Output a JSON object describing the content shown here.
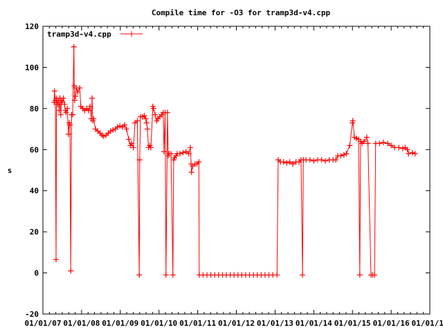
{
  "chart_data": {
    "type": "line",
    "title": "Compile time for -O3 for tramp3d-v4.cpp",
    "xlabel": "",
    "ylabel": "s",
    "xlim": [
      2007.0,
      2017.0
    ],
    "ylim": [
      -20,
      120
    ],
    "yticks": [
      -20,
      0,
      20,
      40,
      60,
      80,
      100,
      120
    ],
    "xtick_labels": [
      "01/01/07",
      "01/01/08",
      "01/01/09",
      "01/01/10",
      "01/01/11",
      "01/01/12",
      "01/01/13",
      "01/01/14",
      "01/01/15",
      "01/01/16",
      "01/01/17"
    ],
    "grid": false,
    "legend_position": "top-left",
    "series": [
      {
        "name": "tramp3d-v4.cpp",
        "color": "#ff0000",
        "marker": "plus",
        "points": [
          [
            2007.29,
            83
          ],
          [
            2007.3,
            88.5
          ],
          [
            2007.32,
            84
          ],
          [
            2007.34,
            6.5
          ],
          [
            2007.35,
            85
          ],
          [
            2007.38,
            82
          ],
          [
            2007.4,
            84
          ],
          [
            2007.42,
            79
          ],
          [
            2007.44,
            85
          ],
          [
            2007.46,
            77
          ],
          [
            2007.48,
            84
          ],
          [
            2007.5,
            83
          ],
          [
            2007.53,
            85
          ],
          [
            2007.56,
            82
          ],
          [
            2007.58,
            79
          ],
          [
            2007.6,
            78
          ],
          [
            2007.63,
            80
          ],
          [
            2007.66,
            67.5
          ],
          [
            2007.68,
            73
          ],
          [
            2007.7,
            72
          ],
          [
            2007.72,
            1
          ],
          [
            2007.74,
            77
          ],
          [
            2007.77,
            77
          ],
          [
            2007.8,
            110
          ],
          [
            2007.81,
            91
          ],
          [
            2007.82,
            84
          ],
          [
            2007.84,
            86
          ],
          [
            2007.86,
            90
          ],
          [
            2007.9,
            88
          ],
          [
            2007.95,
            90
          ],
          [
            2007.98,
            81
          ],
          [
            2008.03,
            80
          ],
          [
            2008.08,
            79
          ],
          [
            2008.13,
            80
          ],
          [
            2008.18,
            79
          ],
          [
            2008.22,
            81
          ],
          [
            2008.25,
            75
          ],
          [
            2008.27,
            85
          ],
          [
            2008.29,
            74
          ],
          [
            2008.31,
            75
          ],
          [
            2008.36,
            70
          ],
          [
            2008.42,
            69
          ],
          [
            2008.48,
            68
          ],
          [
            2008.53,
            67
          ],
          [
            2008.57,
            66.5
          ],
          [
            2008.63,
            67
          ],
          [
            2008.69,
            68
          ],
          [
            2008.75,
            69
          ],
          [
            2008.81,
            69.5
          ],
          [
            2008.87,
            70
          ],
          [
            2008.93,
            71
          ],
          [
            2008.99,
            71.5
          ],
          [
            2009.05,
            71
          ],
          [
            2009.11,
            72
          ],
          [
            2009.16,
            70
          ],
          [
            2009.22,
            65
          ],
          [
            2009.26,
            62
          ],
          [
            2009.29,
            63
          ],
          [
            2009.34,
            61
          ],
          [
            2009.38,
            73
          ],
          [
            2009.44,
            74
          ],
          [
            2009.49,
            -1
          ],
          [
            2009.5,
            55
          ],
          [
            2009.52,
            76
          ],
          [
            2009.57,
            76
          ],
          [
            2009.62,
            76.5
          ],
          [
            2009.66,
            75
          ],
          [
            2009.68,
            73
          ],
          [
            2009.7,
            70
          ],
          [
            2009.73,
            61
          ],
          [
            2009.76,
            62
          ],
          [
            2009.79,
            61
          ],
          [
            2009.84,
            81
          ],
          [
            2009.86,
            80
          ],
          [
            2009.9,
            77
          ],
          [
            2009.94,
            74
          ],
          [
            2009.97,
            75
          ],
          [
            2010.02,
            76
          ],
          [
            2010.07,
            77
          ],
          [
            2010.11,
            78
          ],
          [
            2010.13,
            59
          ],
          [
            2010.16,
            78
          ],
          [
            2010.18,
            -1
          ],
          [
            2010.22,
            78
          ],
          [
            2010.24,
            57
          ],
          [
            2010.26,
            58
          ],
          [
            2010.31,
            58
          ],
          [
            2010.36,
            -1
          ],
          [
            2010.38,
            55
          ],
          [
            2010.4,
            56
          ],
          [
            2010.44,
            57
          ],
          [
            2010.47,
            58
          ],
          [
            2010.54,
            58
          ],
          [
            2010.62,
            58.5
          ],
          [
            2010.7,
            59
          ],
          [
            2010.77,
            58
          ],
          [
            2010.81,
            61
          ],
          [
            2010.83,
            53
          ],
          [
            2010.84,
            49
          ],
          [
            2010.87,
            52
          ],
          [
            2010.93,
            53
          ],
          [
            2010.98,
            53
          ],
          [
            2011.03,
            54
          ],
          [
            2011.04,
            -1
          ],
          [
            2011.14,
            -1
          ],
          [
            2011.24,
            -1
          ],
          [
            2011.34,
            -1
          ],
          [
            2011.44,
            -1
          ],
          [
            2011.54,
            -1
          ],
          [
            2011.64,
            -1
          ],
          [
            2011.74,
            -1
          ],
          [
            2011.84,
            -1
          ],
          [
            2011.94,
            -1
          ],
          [
            2012.04,
            -1
          ],
          [
            2012.14,
            -1
          ],
          [
            2012.24,
            -1
          ],
          [
            2012.34,
            -1
          ],
          [
            2012.44,
            -1
          ],
          [
            2012.54,
            -1
          ],
          [
            2012.64,
            -1
          ],
          [
            2012.74,
            -1
          ],
          [
            2012.84,
            -1
          ],
          [
            2012.94,
            -1
          ],
          [
            2013.05,
            -1
          ],
          [
            2013.08,
            55
          ],
          [
            2013.14,
            54
          ],
          [
            2013.22,
            54
          ],
          [
            2013.3,
            53.5
          ],
          [
            2013.38,
            54
          ],
          [
            2013.46,
            53
          ],
          [
            2013.54,
            54
          ],
          [
            2013.62,
            54
          ],
          [
            2013.67,
            55
          ],
          [
            2013.71,
            -1
          ],
          [
            2013.73,
            55
          ],
          [
            2013.8,
            55
          ],
          [
            2013.9,
            55
          ],
          [
            2014.0,
            54.5
          ],
          [
            2014.1,
            55
          ],
          [
            2014.2,
            55
          ],
          [
            2014.3,
            54.5
          ],
          [
            2014.4,
            55
          ],
          [
            2014.5,
            55
          ],
          [
            2014.57,
            55
          ],
          [
            2014.62,
            57
          ],
          [
            2014.7,
            57
          ],
          [
            2014.78,
            57.5
          ],
          [
            2014.84,
            58
          ],
          [
            2014.93,
            62
          ],
          [
            2015.0,
            73
          ],
          [
            2015.01,
            74
          ],
          [
            2015.05,
            66
          ],
          [
            2015.1,
            65.5
          ],
          [
            2015.16,
            65
          ],
          [
            2015.19,
            -1
          ],
          [
            2015.21,
            64
          ],
          [
            2015.25,
            63
          ],
          [
            2015.3,
            64
          ],
          [
            2015.37,
            66
          ],
          [
            2015.4,
            63
          ],
          [
            2015.48,
            -1
          ],
          [
            2015.52,
            -1
          ],
          [
            2015.57,
            -1
          ],
          [
            2015.6,
            63
          ],
          [
            2015.7,
            63
          ],
          [
            2015.8,
            63.5
          ],
          [
            2015.91,
            63
          ],
          [
            2016.0,
            62
          ],
          [
            2016.09,
            61
          ],
          [
            2016.2,
            61
          ],
          [
            2016.3,
            60.5
          ],
          [
            2016.36,
            61
          ],
          [
            2016.42,
            60
          ],
          [
            2016.45,
            58
          ],
          [
            2016.55,
            58.5
          ],
          [
            2016.62,
            58
          ]
        ]
      }
    ]
  }
}
